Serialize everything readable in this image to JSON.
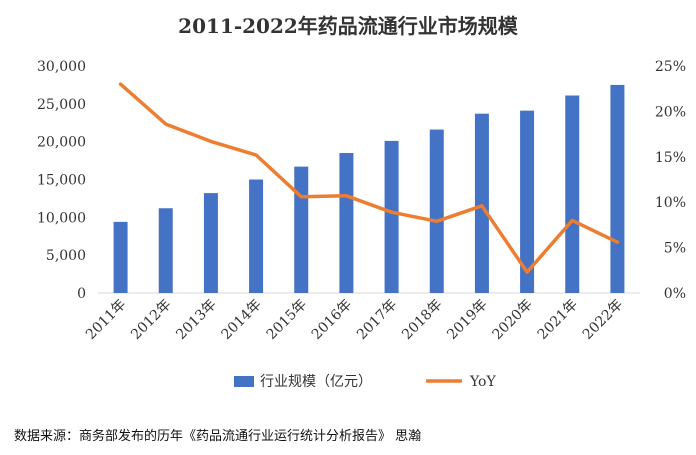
{
  "chart_data": {
    "type": "bar",
    "title": "2011-2022年药品流通行业市场规模",
    "categories": [
      "2011年",
      "2012年",
      "2013年",
      "2014年",
      "2015年",
      "2016年",
      "2017年",
      "2018年",
      "2019年",
      "2020年",
      "2021年",
      "2022年"
    ],
    "series": [
      {
        "name": "行业规模（亿元）",
        "type": "bar",
        "axis": "left",
        "color": "#4472C4",
        "values": [
          9400,
          11200,
          13200,
          15000,
          16700,
          18500,
          20100,
          21600,
          23700,
          24100,
          26100,
          27500
        ]
      },
      {
        "name": "YoY",
        "type": "line",
        "axis": "right",
        "color": "#ED7D31",
        "values": [
          23.0,
          18.6,
          16.7,
          15.2,
          10.6,
          10.7,
          8.9,
          7.9,
          9.6,
          2.3,
          8.0,
          5.6
        ]
      }
    ],
    "y_left": {
      "range": [
        0,
        30000
      ],
      "ticks": [
        "0",
        "5,000",
        "10,000",
        "15,000",
        "20,000",
        "25,000",
        "30,000"
      ]
    },
    "y_right": {
      "range": [
        0,
        25
      ],
      "ticks": [
        "0%",
        "5%",
        "10%",
        "15%",
        "20%",
        "25%"
      ]
    },
    "grid": false,
    "legend_position": "bottom"
  },
  "source_note": "数据来源：商务部发布的历年《药品流通行业运行统计分析报告》 思瀚"
}
